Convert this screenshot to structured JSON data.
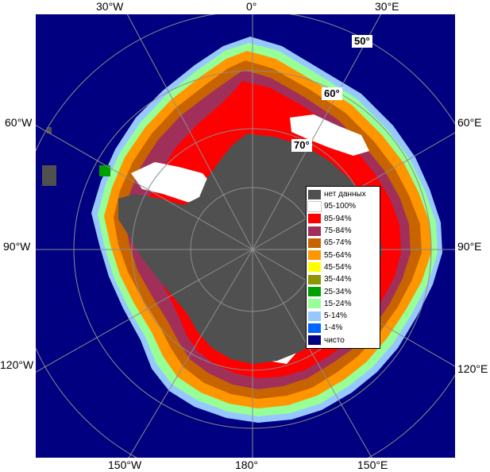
{
  "map": {
    "longitude_labels": {
      "w30": "30°W",
      "zero": "0°",
      "e30": "30°E",
      "w60": "60°W",
      "e60": "60°E",
      "w90": "90°W",
      "e90": "90°E",
      "w120": "120°W",
      "e120": "120°E",
      "w150": "150°W",
      "lon180": "180°",
      "e150": "150°E"
    },
    "latitude_labels": {
      "lat50": "50°",
      "lat60": "60°",
      "lat70": "70°"
    }
  },
  "legend": {
    "items": [
      {
        "label": "нет данных",
        "color": "#505050"
      },
      {
        "label": "95-100%",
        "color": "#ffffff"
      },
      {
        "label": "85-94%",
        "color": "#ff0000"
      },
      {
        "label": "75-84%",
        "color": "#a0305a"
      },
      {
        "label": "65-74%",
        "color": "#c86400"
      },
      {
        "label": "55-64%",
        "color": "#ff9600"
      },
      {
        "label": "45-54%",
        "color": "#ffff00"
      },
      {
        "label": "35-44%",
        "color": "#8c9600"
      },
      {
        "label": "25-34%",
        "color": "#00a000"
      },
      {
        "label": "15-24%",
        "color": "#96ff96"
      },
      {
        "label": "5-14%",
        "color": "#96c8ff"
      },
      {
        "label": "1-4%",
        "color": "#0064ff"
      },
      {
        "label": "чисто",
        "color": "#000080"
      }
    ]
  }
}
